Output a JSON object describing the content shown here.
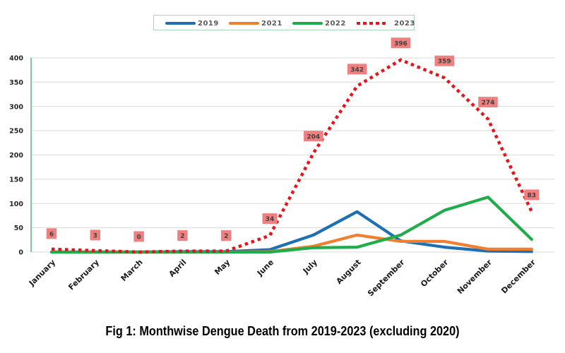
{
  "chart_data": {
    "type": "line",
    "title": "",
    "caption": "Fig 1: Monthwise Dengue Death from 2019-2023 (excluding 2020)",
    "xlabel": "",
    "ylabel": "",
    "categories": [
      "January",
      "February",
      "March",
      "April",
      "May",
      "June",
      "July",
      "August",
      "September",
      "October",
      "November",
      "December"
    ],
    "ylim": [
      0,
      400
    ],
    "yticks": [
      0,
      50,
      100,
      150,
      200,
      250,
      300,
      350,
      400
    ],
    "grid": true,
    "legend_position": "top-center",
    "series": [
      {
        "name": "2019",
        "color": "#1f6fb5",
        "style": "solid",
        "values": [
          0,
          0,
          0,
          1,
          1,
          5,
          35,
          83,
          23,
          10,
          2,
          1
        ],
        "show_labels": false
      },
      {
        "name": "2021",
        "color": "#f08030",
        "style": "solid",
        "values": [
          0,
          0,
          0,
          0,
          0,
          1,
          12,
          35,
          22,
          22,
          6,
          6
        ],
        "show_labels": false
      },
      {
        "name": "2022",
        "color": "#1fad4b",
        "style": "solid",
        "values": [
          0,
          0,
          0,
          0,
          0,
          0,
          9,
          10,
          35,
          86,
          113,
          26
        ],
        "show_labels": false
      },
      {
        "name": "2023",
        "color": "#e8141b",
        "style": "dotted",
        "values": [
          6,
          3,
          0,
          2,
          2,
          34,
          204,
          342,
          396,
          359,
          274,
          83
        ],
        "show_labels": true
      }
    ],
    "data_label_bg": "#f08080"
  }
}
